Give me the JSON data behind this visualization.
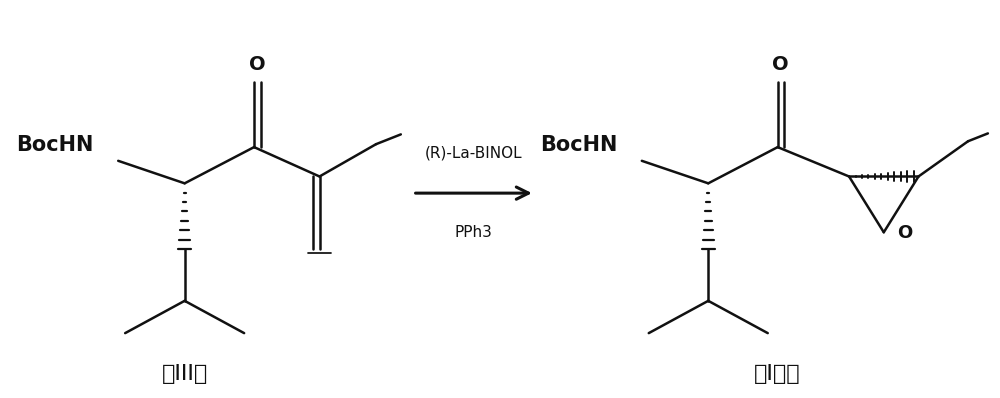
{
  "background_color": "#ffffff",
  "figsize": [
    10.0,
    3.98
  ],
  "dpi": 100,
  "line_color": "#111111",
  "line_width": 1.8,
  "text_color": "#111111",
  "label_III": "（III）",
  "label_I": "（I）。",
  "reagent_top": "(R)-La-BINOL",
  "reagent_bottom": "PPh3",
  "bochN_fontsize": 15,
  "label_fontsize": 16,
  "O_fontsize": 14
}
